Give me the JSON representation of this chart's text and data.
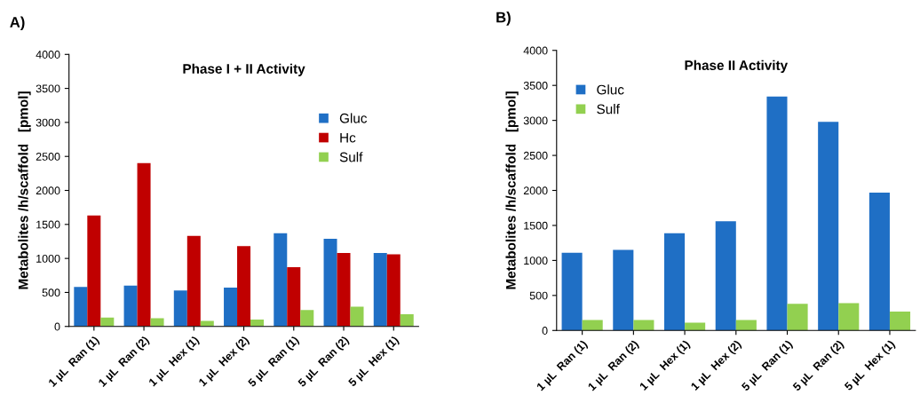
{
  "chart_data": [
    {
      "type": "bar",
      "title": "Phase I + II Activity",
      "ylabel": "Metabolites /h/scaffold   [pmol]",
      "annotations": [
        "A)"
      ],
      "categories": [
        "1 µL  Ran (1)",
        "1 µL  Ran (2)",
        "1 µL  Hex (1)",
        "1 µL  Hex (2)",
        "5 µL  Ran (1)",
        "5 µL  Ran (2)",
        "5 µL  Hex (1)"
      ],
      "series": [
        {
          "name": "Gluc",
          "color": "#1f6fc5",
          "values": [
            580,
            600,
            530,
            570,
            1370,
            1290,
            1080
          ]
        },
        {
          "name": "Hc",
          "color": "#c00000",
          "values": [
            1630,
            2400,
            1330,
            1180,
            870,
            1080,
            1060
          ]
        },
        {
          "name": "Sulf",
          "color": "#92d050",
          "values": [
            130,
            120,
            80,
            100,
            240,
            290,
            180
          ]
        }
      ],
      "ylim": [
        0,
        4000
      ],
      "yticks": [
        0,
        500,
        1000,
        1500,
        2000,
        2500,
        3000,
        3500,
        4000
      ],
      "grid": false,
      "legend": "right"
    },
    {
      "type": "bar",
      "title": "Phase II Activity",
      "ylabel": "Metabolites /h/scaffold   [pmol]",
      "annotations": [
        "B)"
      ],
      "categories": [
        "1 µL  Ran (1)",
        "1 µL  Ran (2)",
        "1 µL  Hex (1)",
        "1 µL  Hex (2)",
        "5 µL  Ran (1)",
        "5 µL  Ran (2)",
        "5 µL  Hex (1)"
      ],
      "series": [
        {
          "name": "Gluc",
          "color": "#1f6fc5",
          "values": [
            1110,
            1150,
            1390,
            1560,
            3340,
            2980,
            1970
          ]
        },
        {
          "name": "Sulf",
          "color": "#92d050",
          "values": [
            150,
            150,
            110,
            150,
            380,
            390,
            270
          ]
        }
      ],
      "ylim": [
        0,
        4000
      ],
      "yticks": [
        0,
        500,
        1000,
        1500,
        2000,
        2500,
        3000,
        3500,
        4000
      ],
      "grid": false,
      "legend": "top left"
    }
  ]
}
